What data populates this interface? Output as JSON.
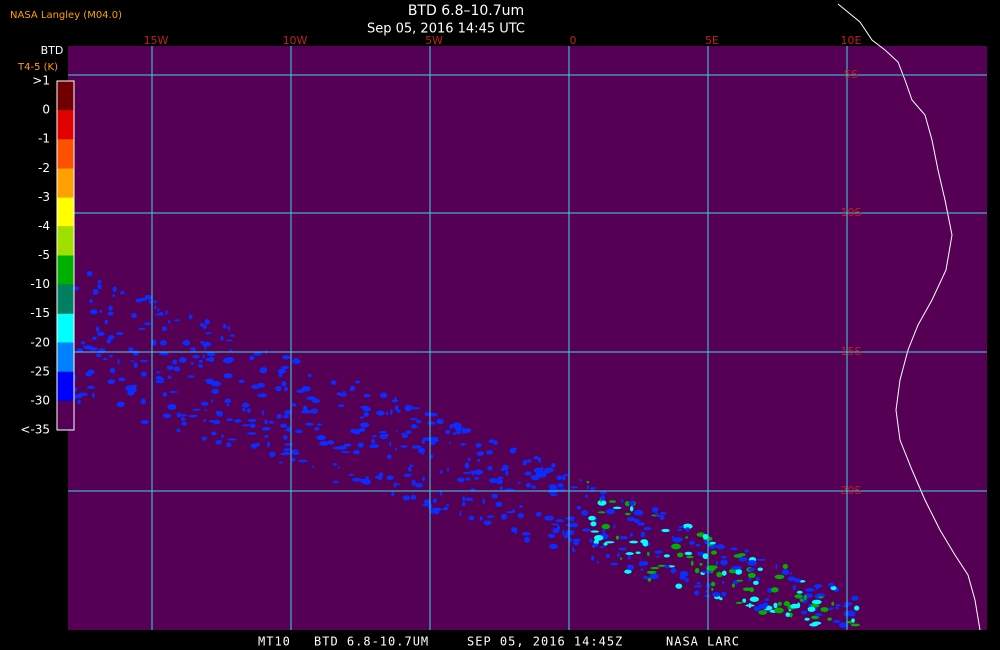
{
  "header": {
    "agency": "NASA Langley (M04.0)",
    "title": "BTD 6.8–10.7um",
    "subtitle": "Sep 05, 2016 14:45 UTC"
  },
  "legend": {
    "title": "BTD",
    "subtitle": "T4-5 (K)",
    "labels": [
      ">1",
      "0",
      "-1",
      "-2",
      "-3",
      "-4",
      "-5",
      "-10",
      "-15",
      "-20",
      "-25",
      "-30",
      "<-35"
    ],
    "colors": [
      "#700000",
      "#e00000",
      "#ff5000",
      "#ffa000",
      "#ffff00",
      "#a0e000",
      "#00b000",
      "#008060",
      "#00ffff",
      "#0080ff",
      "#0000ff",
      "#550055"
    ]
  },
  "map": {
    "lon_labels": [
      "15W",
      "10W",
      "5W",
      "0",
      "5E",
      "10E"
    ],
    "lat_labels": [
      "5S",
      "10S",
      "15S",
      "20S"
    ]
  },
  "footer": {
    "items": [
      "MT10",
      "BTD 6.8-10.7UM",
      "SEP 05, 2016 14:45Z",
      "NASA LARC"
    ]
  }
}
